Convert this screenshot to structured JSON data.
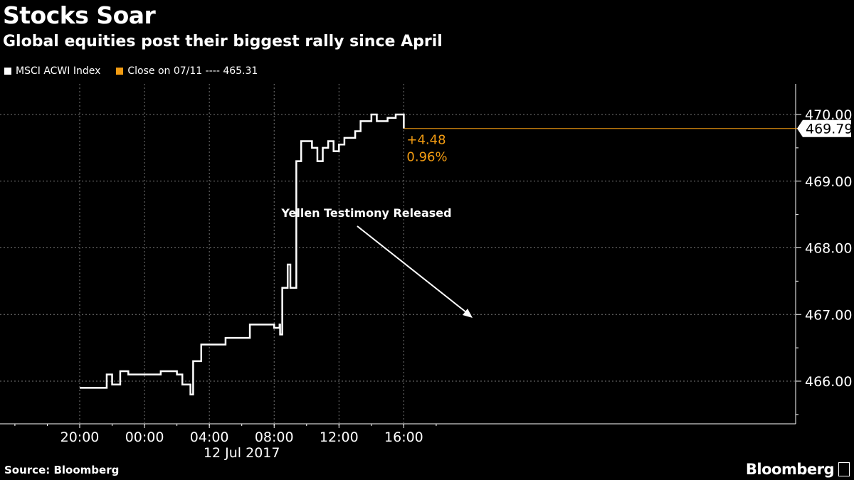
{
  "chart_data": {
    "type": "line",
    "title": "Stocks Soar",
    "subtitle": "Global equities post their biggest rally since April",
    "legend": [
      {
        "label": "MSCI ACWI Index",
        "color": "#ffffff"
      },
      {
        "label": "Close on 07/11 ---- 465.31",
        "color": "#f39c12"
      }
    ],
    "x_ticks": [
      "20:00",
      "00:00",
      "04:00",
      "08:00",
      "12:00",
      "16:00"
    ],
    "x_sublabel": "12 Jul 2017",
    "y_ticks": [
      "466.00",
      "467.00",
      "468.00",
      "469.00",
      "470.00"
    ],
    "ylim": [
      465.4,
      470.5
    ],
    "xlim": [
      "2017-07-11 18:00",
      "2017-07-12 18:00"
    ],
    "grid": true,
    "annotation": "Yellen Testimony Released",
    "last_value": "469.79",
    "change": "+4.48",
    "change_pct": "0.96%",
    "accent_color": "#f39c12",
    "series": [
      {
        "name": "MSCI ACWI Index",
        "x": [
          "2017-07-11 20:00",
          "2017-07-11 21:00",
          "2017-07-11 21:40",
          "2017-07-11 22:00",
          "2017-07-11 22:30",
          "2017-07-11 23:00",
          "2017-07-12 00:00",
          "2017-07-12 01:00",
          "2017-07-12 01:30",
          "2017-07-12 02:00",
          "2017-07-12 02:20",
          "2017-07-12 02:50",
          "2017-07-12 03:00",
          "2017-07-12 03:30",
          "2017-07-12 04:00",
          "2017-07-12 05:00",
          "2017-07-12 05:40",
          "2017-07-12 06:30",
          "2017-07-12 07:30",
          "2017-07-12 08:00",
          "2017-07-12 08:20",
          "2017-07-12 08:22",
          "2017-07-12 08:30",
          "2017-07-12 08:50",
          "2017-07-12 09:00",
          "2017-07-12 09:20",
          "2017-07-12 09:22",
          "2017-07-12 09:40",
          "2017-07-12 10:20",
          "2017-07-12 10:40",
          "2017-07-12 11:00",
          "2017-07-12 11:20",
          "2017-07-12 11:40",
          "2017-07-12 12:00",
          "2017-07-12 12:20",
          "2017-07-12 13:00",
          "2017-07-12 13:20",
          "2017-07-12 14:00",
          "2017-07-12 14:20",
          "2017-07-12 15:00",
          "2017-07-12 15:30",
          "2017-07-12 16:00"
        ],
        "y": [
          465.9,
          465.9,
          466.1,
          465.95,
          466.15,
          466.1,
          466.1,
          466.15,
          466.15,
          466.1,
          465.95,
          465.8,
          466.3,
          466.55,
          466.55,
          466.65,
          466.65,
          466.85,
          466.85,
          466.8,
          466.85,
          466.7,
          467.4,
          467.75,
          467.4,
          467.4,
          469.3,
          469.6,
          469.5,
          469.3,
          469.5,
          469.6,
          469.45,
          469.55,
          469.65,
          469.75,
          469.9,
          470.0,
          469.9,
          469.95,
          470.0,
          469.79
        ]
      }
    ]
  }
}
